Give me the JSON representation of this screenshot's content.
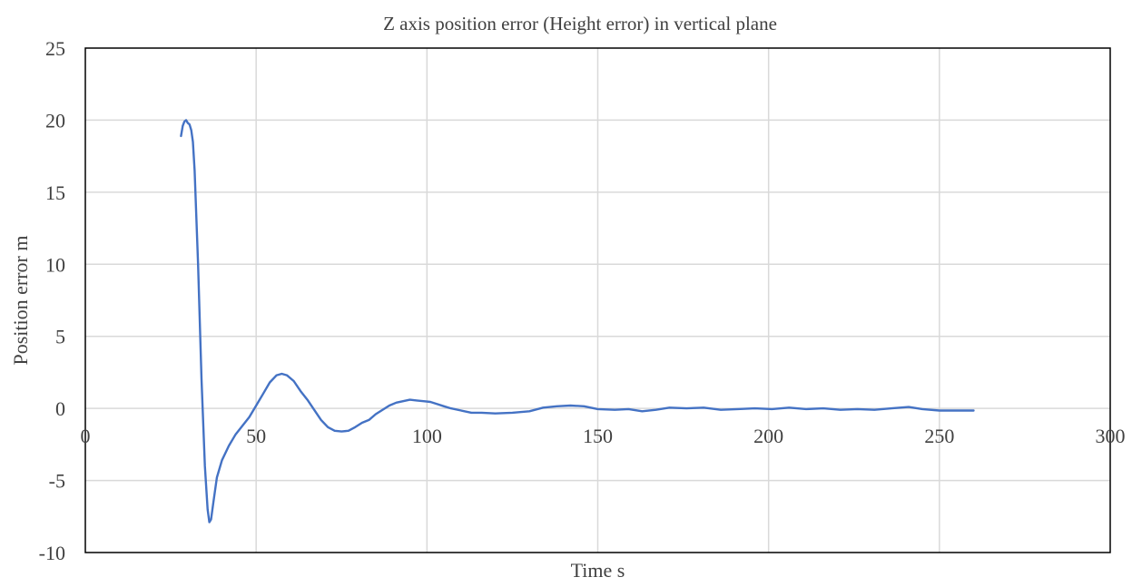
{
  "chart_data": {
    "type": "line",
    "title": "Z axis position error (Height error) in vertical plane",
    "xlabel": "Time  s",
    "ylabel": "Position error m",
    "xlim": [
      0,
      300
    ],
    "ylim": [
      -10,
      25
    ],
    "x_ticks": [
      0,
      50,
      100,
      150,
      200,
      250,
      300
    ],
    "y_ticks": [
      25,
      20,
      15,
      10,
      5,
      0,
      -5,
      -10
    ],
    "grid": true,
    "legend": "none",
    "series": [
      {
        "color": "#4472c4",
        "points": [
          [
            28.0,
            18.9
          ],
          [
            28.5,
            19.6
          ],
          [
            29.0,
            19.9
          ],
          [
            29.5,
            20.0
          ],
          [
            30.0,
            19.8
          ],
          [
            30.5,
            19.7
          ],
          [
            31.0,
            19.3
          ],
          [
            31.5,
            18.5
          ],
          [
            32.0,
            16.5
          ],
          [
            33.0,
            10.0
          ],
          [
            34.0,
            2.0
          ],
          [
            35.0,
            -4.0
          ],
          [
            35.8,
            -7.0
          ],
          [
            36.3,
            -7.9
          ],
          [
            36.8,
            -7.7
          ],
          [
            37.5,
            -6.5
          ],
          [
            38.5,
            -4.8
          ],
          [
            40.0,
            -3.6
          ],
          [
            42.0,
            -2.6
          ],
          [
            44.0,
            -1.8
          ],
          [
            46.0,
            -1.2
          ],
          [
            48.0,
            -0.6
          ],
          [
            50.0,
            0.2
          ],
          [
            52.0,
            1.0
          ],
          [
            54.0,
            1.8
          ],
          [
            56.0,
            2.3
          ],
          [
            57.5,
            2.4
          ],
          [
            59.0,
            2.3
          ],
          [
            61.0,
            1.9
          ],
          [
            63.0,
            1.2
          ],
          [
            65.0,
            0.6
          ],
          [
            67.0,
            -0.1
          ],
          [
            69.0,
            -0.8
          ],
          [
            71.0,
            -1.3
          ],
          [
            73.0,
            -1.55
          ],
          [
            75.0,
            -1.6
          ],
          [
            77.0,
            -1.55
          ],
          [
            79.0,
            -1.3
          ],
          [
            81.0,
            -1.0
          ],
          [
            83.0,
            -0.8
          ],
          [
            85.0,
            -0.4
          ],
          [
            87.0,
            -0.1
          ],
          [
            89.0,
            0.2
          ],
          [
            91.0,
            0.4
          ],
          [
            93.0,
            0.5
          ],
          [
            95.0,
            0.6
          ],
          [
            97.0,
            0.55
          ],
          [
            99.0,
            0.5
          ],
          [
            101.0,
            0.45
          ],
          [
            103.0,
            0.3
          ],
          [
            105.0,
            0.15
          ],
          [
            107.0,
            0.0
          ],
          [
            110.0,
            -0.15
          ],
          [
            113.0,
            -0.3
          ],
          [
            116.0,
            -0.3
          ],
          [
            120.0,
            -0.35
          ],
          [
            125.0,
            -0.3
          ],
          [
            130.0,
            -0.2
          ],
          [
            134.0,
            0.05
          ],
          [
            138.0,
            0.15
          ],
          [
            142.0,
            0.2
          ],
          [
            146.0,
            0.15
          ],
          [
            150.0,
            -0.05
          ],
          [
            155.0,
            -0.1
          ],
          [
            159.0,
            -0.05
          ],
          [
            163.0,
            -0.2
          ],
          [
            167.0,
            -0.1
          ],
          [
            171.0,
            0.05
          ],
          [
            176.0,
            0.0
          ],
          [
            181.0,
            0.05
          ],
          [
            186.0,
            -0.1
          ],
          [
            191.0,
            -0.05
          ],
          [
            196.0,
            0.0
          ],
          [
            201.0,
            -0.05
          ],
          [
            206.0,
            0.05
          ],
          [
            211.0,
            -0.05
          ],
          [
            216.0,
            0.0
          ],
          [
            221.0,
            -0.1
          ],
          [
            226.0,
            -0.05
          ],
          [
            231.0,
            -0.1
          ],
          [
            236.0,
            0.0
          ],
          [
            241.0,
            0.1
          ],
          [
            245.0,
            -0.05
          ],
          [
            250.0,
            -0.15
          ],
          [
            255.0,
            -0.15
          ],
          [
            260.0,
            -0.15
          ]
        ]
      }
    ]
  }
}
